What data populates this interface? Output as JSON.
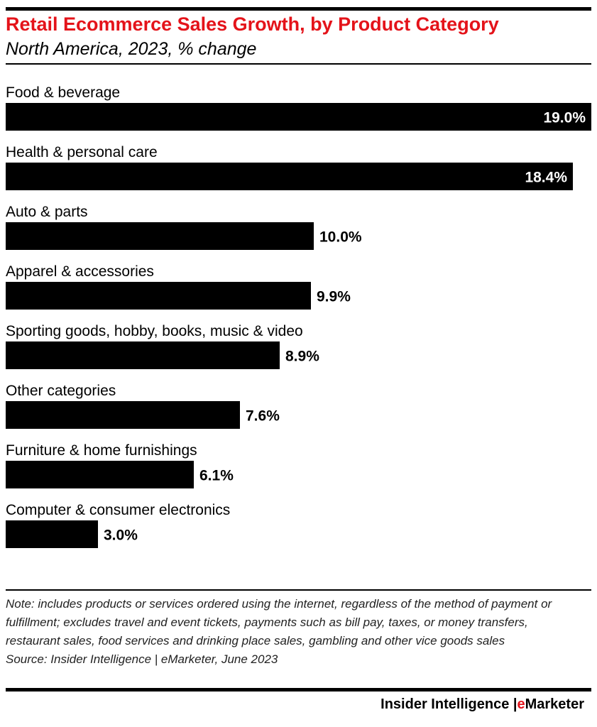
{
  "header": {
    "title": "Retail Ecommerce Sales Growth, by Product Category",
    "subtitle": "North America, 2023, % change"
  },
  "footer": {
    "note": "Note: includes products or services ordered using the internet, regardless of the method of payment or fulfillment; excludes travel and event tickets, payments such as bill pay, taxes, or money transfers, restaurant sales, food services and drinking place sales, gambling and other vice goods sales",
    "source": "Source: Insider Intelligence | eMarketer, June 2023",
    "brand_part1": "Insider Intelligence |",
    "brand_accent": "e",
    "brand_part2": "Marketer"
  },
  "colors": {
    "bar": "#000000",
    "title": "#e4131a",
    "label_inside": "#ffffff",
    "label_outside": "#000000"
  },
  "chart_data": {
    "type": "bar",
    "orientation": "horizontal",
    "categories": [
      "Food & beverage",
      "Health & personal care",
      "Auto & parts",
      "Apparel & accessories",
      "Sporting goods, hobby, books, music & video",
      "Other categories",
      "Furniture & home furnishings",
      "Computer & consumer electronics"
    ],
    "values": [
      19.0,
      18.4,
      10.0,
      9.9,
      8.9,
      7.6,
      6.1,
      3.0
    ],
    "value_labels": [
      "19.0%",
      "18.4%",
      "10.0%",
      "9.9%",
      "8.9%",
      "7.6%",
      "6.1%",
      "3.0%"
    ],
    "title": "Retail Ecommerce Sales Growth, by Product Category",
    "subtitle": "North America, 2023, % change",
    "xlabel": "",
    "ylabel": "",
    "xlim": [
      0,
      19.0
    ],
    "grid": false,
    "legend": "none"
  }
}
